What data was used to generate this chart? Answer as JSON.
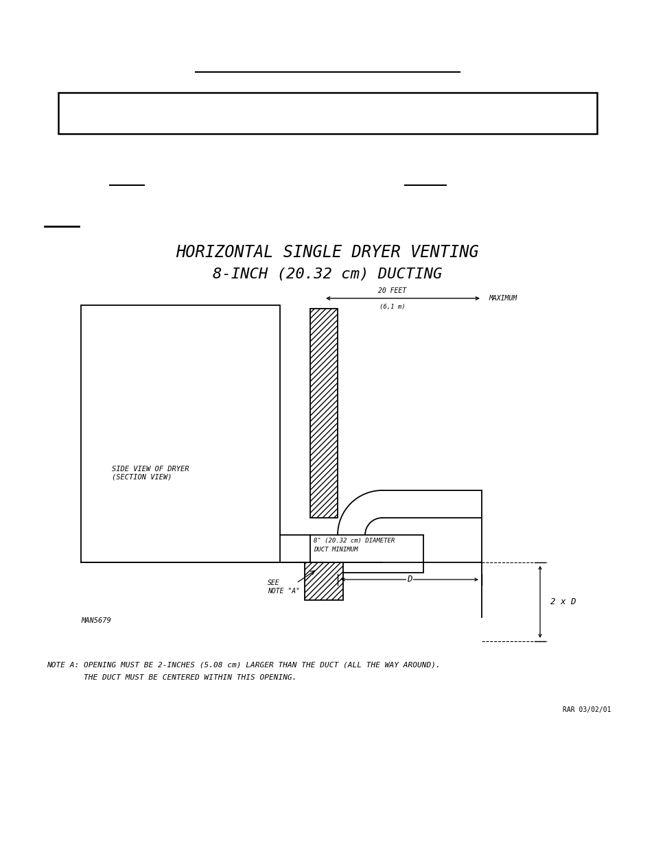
{
  "bg_color": "#ffffff",
  "line_color": "#000000",
  "title_line1": "HORIZONTAL SINGLE DRYER VENTING",
  "title_line2": "8-INCH (20.32 cm) DUCTING",
  "title_fontsize": 17,
  "note_text_line1": "NOTE A: OPENING MUST BE 2-INCHES (5.08 cm) LARGER THAN THE DUCT (ALL THE WAY AROUND).",
  "note_text_line2": "        THE DUCT MUST BE CENTERED WITHIN THIS OPENING.",
  "note_fontsize": 8.0,
  "rar_text": "RAR 03/02/01",
  "rar_fontsize": 7,
  "man_text": "MAN5679",
  "man_fontsize": 7.5
}
